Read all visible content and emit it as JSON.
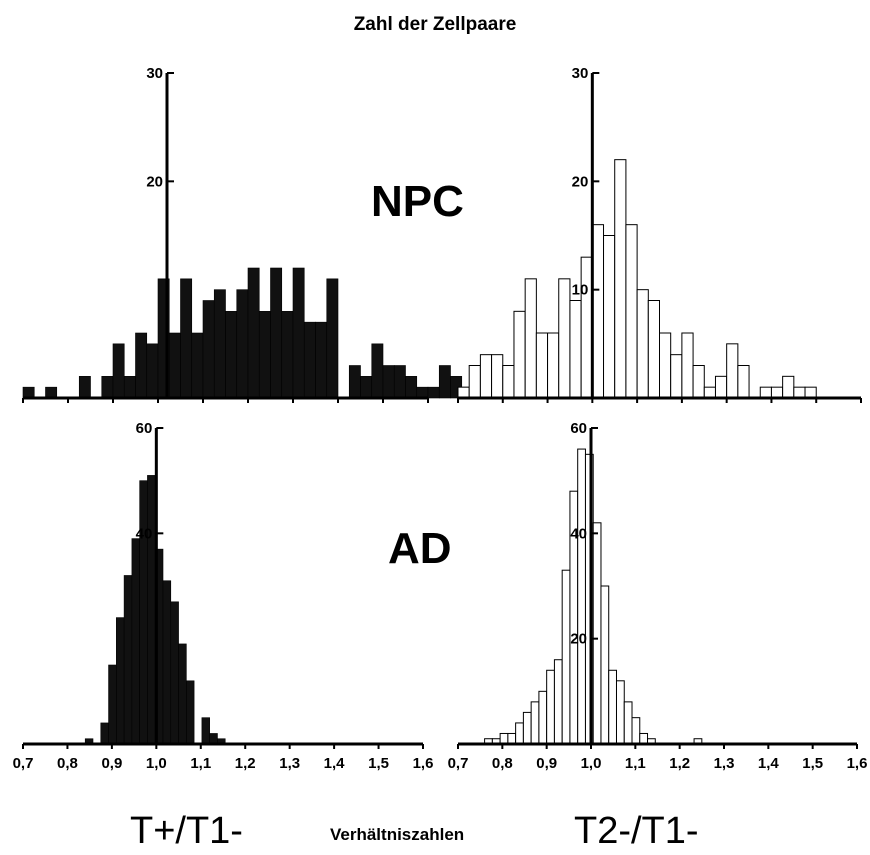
{
  "figure": {
    "title": "Zahl der Zellpaare",
    "group_labels": {
      "top": "NPC",
      "bottom": "AD"
    },
    "ratio_labels": {
      "left": "T+/T1-",
      "right": "T2-/T1-"
    },
    "xlabel": "Verhältniszahlen",
    "colors": {
      "filled": "#111111",
      "open": "#ffffff",
      "edge": "#000000"
    }
  },
  "chart_data": [
    {
      "type": "bar",
      "panel": "top-left",
      "group": "NPC",
      "ratio": "T+/T1-",
      "fill": "filled",
      "xlim": [
        0.7,
        1.6
      ],
      "ylim": [
        0,
        30
      ],
      "yticks": [
        "20",
        "30"
      ],
      "yaxis_at": 1.02,
      "bin_width": 0.025,
      "bins_start": 0.7,
      "values": [
        1,
        0,
        1,
        0,
        0,
        2,
        0,
        2,
        5,
        2,
        6,
        5,
        11,
        6,
        11,
        6,
        9,
        10,
        8,
        10,
        12,
        8,
        12,
        8,
        12,
        7,
        7,
        11,
        0,
        3,
        2,
        5,
        3,
        3,
        2,
        1,
        1,
        3,
        2,
        1,
        1
      ]
    },
    {
      "type": "bar",
      "panel": "top-right",
      "group": "NPC",
      "ratio": "T2-/T1-",
      "fill": "open",
      "xlim": [
        0.7,
        1.6
      ],
      "ylim": [
        0,
        30
      ],
      "yticks": [
        "10",
        "20",
        "30"
      ],
      "yaxis_at": 1.0,
      "bin_width": 0.025,
      "bins_start": 0.7,
      "values": [
        1,
        3,
        4,
        4,
        3,
        8,
        11,
        6,
        6,
        11,
        9,
        13,
        16,
        15,
        22,
        16,
        10,
        9,
        6,
        4,
        6,
        3,
        1,
        2,
        5,
        3,
        0,
        1,
        1,
        2,
        1,
        1,
        0,
        0,
        0,
        0,
        0,
        0,
        0,
        1,
        2
      ]
    },
    {
      "type": "bar",
      "panel": "bottom-left",
      "group": "AD",
      "ratio": "T+/T1-",
      "fill": "filled",
      "xlim": [
        0.7,
        1.6
      ],
      "ylim": [
        0,
        60
      ],
      "yticks": [
        "40",
        "60"
      ],
      "yaxis_at": 1.0,
      "bin_width": 0.0175,
      "bins_start": 0.84,
      "xticks": [
        "0,7",
        "0,8",
        "0,9",
        "1,0",
        "1,1",
        "1,2",
        "1,3",
        "1,4",
        "1,5",
        "1,6"
      ],
      "values": [
        1,
        0,
        4,
        15,
        24,
        32,
        39,
        50,
        51,
        37,
        31,
        27,
        19,
        12,
        0,
        5,
        2,
        1
      ]
    },
    {
      "type": "bar",
      "panel": "bottom-right",
      "group": "AD",
      "ratio": "T2-/T1-",
      "fill": "open",
      "xlim": [
        0.7,
        1.6
      ],
      "ylim": [
        0,
        60
      ],
      "yticks": [
        "20",
        "40",
        "60"
      ],
      "yaxis_at": 1.0,
      "bin_width": 0.0175,
      "bins_start": 0.76,
      "xticks": [
        "0,7",
        "0,8",
        "0,9",
        "1,0",
        "1,1",
        "1,2",
        "1,3",
        "1,4",
        "1,5",
        "1,6"
      ],
      "values": [
        1,
        1,
        2,
        2,
        4,
        6,
        8,
        10,
        14,
        16,
        33,
        48,
        56,
        55,
        42,
        30,
        14,
        12,
        8,
        5,
        2,
        1,
        0,
        0,
        0,
        0,
        0,
        1
      ]
    }
  ]
}
